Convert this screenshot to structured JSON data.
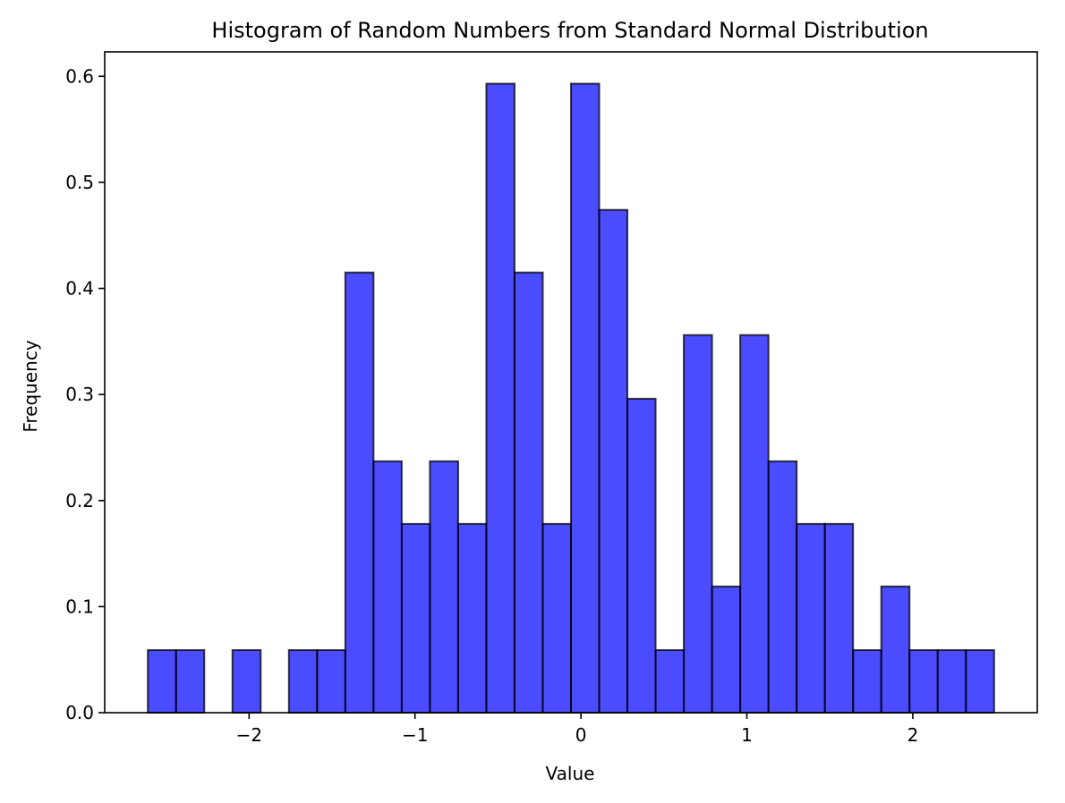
{
  "chart_data": {
    "type": "bar",
    "subtype": "histogram",
    "title": "Histogram of Random Numbers from Standard Normal Distribution",
    "xlabel": "Value",
    "ylabel": "Frequency",
    "bin_edges": [
      -2.61,
      -2.44,
      -2.27,
      -2.1,
      -1.93,
      -1.76,
      -1.59,
      -1.42,
      -1.25,
      -1.08,
      -0.91,
      -0.74,
      -0.57,
      -0.4,
      -0.23,
      -0.06,
      0.11,
      0.28,
      0.45,
      0.62,
      0.79,
      0.96,
      1.13,
      1.3,
      1.47,
      1.64,
      1.81,
      1.98,
      2.15,
      2.32,
      2.49
    ],
    "values": [
      0.059,
      0.059,
      0,
      0.059,
      0,
      0.059,
      0.059,
      0.415,
      0.237,
      0.178,
      0.237,
      0.178,
      0.593,
      0.415,
      0.178,
      0.593,
      0.474,
      0.296,
      0.059,
      0.356,
      0.119,
      0.356,
      0.237,
      0.178,
      0.178,
      0.059,
      0.119,
      0.059,
      0.059,
      0.059
    ],
    "xlim": [
      -2.87,
      2.75
    ],
    "ylim": [
      0,
      0.623
    ],
    "x_ticks": [
      -2,
      -1,
      0,
      1,
      2
    ],
    "x_tick_labels": [
      "−2",
      "−1",
      "0",
      "1",
      "2"
    ],
    "y_ticks": [
      0.0,
      0.1,
      0.2,
      0.3,
      0.4,
      0.5,
      0.6
    ],
    "y_tick_labels": [
      "0.0",
      "0.1",
      "0.2",
      "0.3",
      "0.4",
      "0.5",
      "0.6"
    ],
    "grid": false,
    "bar_color": "#0000FF",
    "bar_opacity": 0.7,
    "edge_color": "#000000"
  }
}
